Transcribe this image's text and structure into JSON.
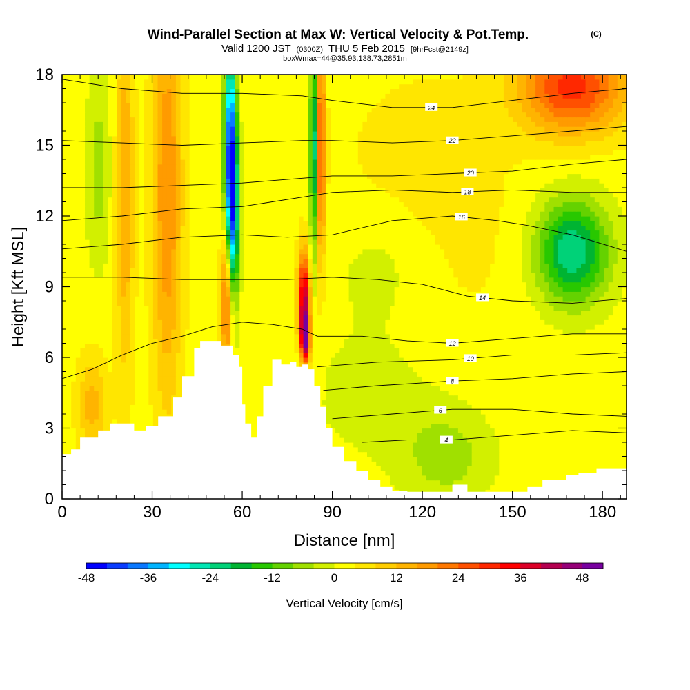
{
  "title": "Wind-Parallel Section at Max W: Vertical Velocity & Pot.Temp.",
  "title_mark": "(C)",
  "subtitle": {
    "valid_a": "Valid 1200 JST",
    "valid_small": "(0300Z)",
    "valid_b": "THU 5 Feb 2015",
    "fcst": "[9hrFcst@2149z]",
    "box": "boxWmax=44@35.93,138.73,2851m"
  },
  "chart_data": {
    "type": "heatmap",
    "xlabel": "Distance [nm]",
    "ylabel": "Height [Kft MSL]",
    "xlim": [
      0,
      188
    ],
    "ylim": [
      0,
      18
    ],
    "x_ticks": [
      0,
      30,
      60,
      90,
      120,
      150,
      180
    ],
    "y_ticks": [
      0,
      3,
      6,
      9,
      12,
      15,
      18
    ],
    "x_tick_labels": [
      "0",
      "30",
      "60",
      "90",
      "120",
      "150",
      "180"
    ],
    "y_tick_labels": [
      "0",
      "3",
      "6",
      "9",
      "12",
      "15",
      "18"
    ],
    "colorbar": {
      "label": "Vertical Velocity [cm/s]",
      "ticks": [
        "-48",
        "-36",
        "-24",
        "-12",
        "0",
        "12",
        "24",
        "36",
        "48"
      ],
      "tick_values": [
        -48,
        -36,
        -24,
        -12,
        0,
        12,
        24,
        36,
        48
      ],
      "range": [
        -48,
        52
      ],
      "step": 4,
      "colors": [
        "#0000ff",
        "#0a3cff",
        "#0a78ff",
        "#00b4ff",
        "#00ffff",
        "#00e6b4",
        "#00d278",
        "#00b432",
        "#28c800",
        "#64d200",
        "#a0e000",
        "#d2f000",
        "#ffff00",
        "#ffe600",
        "#ffcd00",
        "#ffb400",
        "#ff9b00",
        "#ff7800",
        "#ff5000",
        "#ff2800",
        "#ff0000",
        "#dc0028",
        "#b40050",
        "#960078",
        "#7800a0"
      ]
    },
    "vertical_velocity_features": [
      {
        "kind": "updraft",
        "x": 21,
        "y": 13,
        "w": 3,
        "h": 8,
        "v": 14
      },
      {
        "kind": "updraft",
        "x": 35,
        "y": 13,
        "w": 5,
        "h": 9,
        "v": 18
      },
      {
        "kind": "updraft",
        "x": 55,
        "y": 8.5,
        "w": 2,
        "h": 3,
        "v": 28
      },
      {
        "kind": "updraft",
        "x": 80.5,
        "y": 8.5,
        "w": 2,
        "h": 2,
        "v": 40
      },
      {
        "kind": "updraft",
        "x": 81,
        "y": 6.8,
        "w": 1.5,
        "h": 1,
        "v": 40
      },
      {
        "kind": "updraft",
        "x": 86,
        "y": 15,
        "w": 1.5,
        "h": 5,
        "v": 30
      },
      {
        "kind": "updraft",
        "x": 170,
        "y": 17.5,
        "w": 18,
        "h": 2,
        "v": 28
      },
      {
        "kind": "updraft",
        "x": 10,
        "y": 4,
        "w": 5,
        "h": 2,
        "v": 12
      },
      {
        "kind": "updraft",
        "x": 120,
        "y": 12,
        "w": 30,
        "h": 6,
        "v": 5
      },
      {
        "kind": "downdraft",
        "x": 56,
        "y": 15,
        "w": 2,
        "h": 5,
        "v": -38
      },
      {
        "kind": "downdraft",
        "x": 57,
        "y": 12,
        "w": 2,
        "h": 4,
        "v": -28
      },
      {
        "kind": "downdraft",
        "x": 84,
        "y": 15,
        "w": 1.5,
        "h": 4.5,
        "v": -30
      },
      {
        "kind": "downdraft",
        "x": 170,
        "y": 10.5,
        "w": 12,
        "h": 2.2,
        "v": -26
      },
      {
        "kind": "downdraft",
        "x": 108,
        "y": 10,
        "w": 20,
        "h": 3,
        "v": -6
      },
      {
        "kind": "downdraft",
        "x": 128,
        "y": 1.8,
        "w": 15,
        "h": 2,
        "v": -8
      },
      {
        "kind": "downdraft",
        "x": 12,
        "y": 14,
        "w": 4,
        "h": 4,
        "v": -8
      },
      {
        "kind": "downdraft",
        "x": 105,
        "y": 4.5,
        "w": 25,
        "h": 3,
        "v": -4
      }
    ],
    "terrain_kft": [
      [
        0,
        1.9
      ],
      [
        3,
        2.1
      ],
      [
        6,
        2.6
      ],
      [
        12,
        2.9
      ],
      [
        16,
        3.2
      ],
      [
        20,
        3.2
      ],
      [
        24,
        2.9
      ],
      [
        28,
        3.1
      ],
      [
        32,
        3.5
      ],
      [
        37,
        4.3
      ],
      [
        40,
        5.2
      ],
      [
        44,
        6.4
      ],
      [
        46,
        6.7
      ],
      [
        50,
        6.7
      ],
      [
        53,
        6.5
      ],
      [
        57,
        6.1
      ],
      [
        59,
        5.6
      ],
      [
        60,
        4.0
      ],
      [
        61,
        3.2
      ],
      [
        63,
        2.6
      ],
      [
        65,
        3.5
      ],
      [
        67,
        4.8
      ],
      [
        70,
        5.9
      ],
      [
        73,
        5.7
      ],
      [
        76,
        5.8
      ],
      [
        78,
        5.6
      ],
      [
        80,
        5.7
      ],
      [
        82,
        5.5
      ],
      [
        84,
        4.8
      ],
      [
        86,
        3.9
      ],
      [
        88,
        3.0
      ],
      [
        90,
        2.2
      ],
      [
        94,
        1.6
      ],
      [
        98,
        1.2
      ],
      [
        102,
        0.8
      ],
      [
        106,
        0.5
      ],
      [
        110,
        0.35
      ],
      [
        115,
        0.3
      ],
      [
        125,
        0.3
      ],
      [
        130,
        0.6
      ],
      [
        135,
        0.3
      ],
      [
        150,
        0.3
      ],
      [
        155,
        0.5
      ],
      [
        160,
        0.8
      ],
      [
        168,
        1.0
      ],
      [
        172,
        1.1
      ],
      [
        178,
        1.3
      ],
      [
        183,
        1.3
      ],
      [
        188,
        1.3
      ]
    ],
    "isentropes": [
      {
        "label": "4",
        "label_x": 128,
        "points": [
          [
            100,
            2.4
          ],
          [
            115,
            2.5
          ],
          [
            130,
            2.5
          ],
          [
            150,
            2.7
          ],
          [
            170,
            2.9
          ],
          [
            188,
            2.8
          ]
        ]
      },
      {
        "label": "6",
        "label_x": 126,
        "points": [
          [
            90,
            3.4
          ],
          [
            110,
            3.6
          ],
          [
            130,
            3.8
          ],
          [
            150,
            3.8
          ],
          [
            170,
            3.6
          ],
          [
            188,
            3.5
          ]
        ]
      },
      {
        "label": "8",
        "label_x": 130,
        "points": [
          [
            87,
            4.6
          ],
          [
            105,
            4.8
          ],
          [
            130,
            5.0
          ],
          [
            150,
            5.1
          ],
          [
            170,
            5.3
          ],
          [
            188,
            5.4
          ]
        ]
      },
      {
        "label": "10",
        "label_x": 136,
        "points": [
          [
            85,
            5.6
          ],
          [
            105,
            5.8
          ],
          [
            130,
            5.9
          ],
          [
            150,
            6.1
          ],
          [
            170,
            6.1
          ],
          [
            188,
            6.2
          ]
        ]
      },
      {
        "label": "12",
        "label_x": 130,
        "points": [
          [
            0,
            5.1
          ],
          [
            10,
            5.5
          ],
          [
            20,
            6.1
          ],
          [
            30,
            6.6
          ],
          [
            40,
            6.9
          ],
          [
            50,
            7.3
          ],
          [
            60,
            7.5
          ],
          [
            70,
            7.4
          ],
          [
            80,
            7.2
          ],
          [
            85,
            6.9
          ],
          [
            100,
            6.9
          ],
          [
            115,
            6.7
          ],
          [
            130,
            6.6
          ],
          [
            150,
            6.8
          ],
          [
            170,
            7.0
          ],
          [
            188,
            7.0
          ]
        ]
      },
      {
        "label": "14",
        "label_x": 140,
        "points": [
          [
            0,
            9.4
          ],
          [
            20,
            9.4
          ],
          [
            40,
            9.3
          ],
          [
            60,
            9.3
          ],
          [
            75,
            9.3
          ],
          [
            90,
            9.4
          ],
          [
            105,
            9.3
          ],
          [
            120,
            9.1
          ],
          [
            135,
            8.6
          ],
          [
            150,
            8.4
          ],
          [
            170,
            8.3
          ],
          [
            188,
            8.5
          ]
        ]
      },
      {
        "label": "16",
        "label_x": 133,
        "points": [
          [
            0,
            10.6
          ],
          [
            20,
            10.8
          ],
          [
            40,
            11.1
          ],
          [
            60,
            11.2
          ],
          [
            75,
            11.1
          ],
          [
            90,
            11.2
          ],
          [
            110,
            11.8
          ],
          [
            130,
            12.0
          ],
          [
            145,
            11.8
          ],
          [
            155,
            11.6
          ],
          [
            170,
            11.2
          ],
          [
            188,
            10.5
          ]
        ]
      },
      {
        "label": "18",
        "label_x": 135,
        "points": [
          [
            0,
            11.8
          ],
          [
            20,
            12.0
          ],
          [
            40,
            12.3
          ],
          [
            60,
            12.4
          ],
          [
            80,
            12.8
          ],
          [
            90,
            13.0
          ],
          [
            110,
            13.1
          ],
          [
            130,
            13.0
          ],
          [
            150,
            13.1
          ],
          [
            170,
            13.0
          ],
          [
            188,
            13.0
          ]
        ]
      },
      {
        "label": "20",
        "label_x": 136,
        "points": [
          [
            0,
            13.2
          ],
          [
            20,
            13.2
          ],
          [
            40,
            13.3
          ],
          [
            60,
            13.4
          ],
          [
            80,
            13.6
          ],
          [
            90,
            13.7
          ],
          [
            110,
            13.7
          ],
          [
            130,
            13.8
          ],
          [
            150,
            13.9
          ],
          [
            170,
            14.2
          ],
          [
            188,
            14.4
          ]
        ]
      },
      {
        "label": "22",
        "label_x": 130,
        "points": [
          [
            0,
            15.2
          ],
          [
            20,
            15.1
          ],
          [
            40,
            15.0
          ],
          [
            60,
            15.1
          ],
          [
            80,
            15.2
          ],
          [
            90,
            15.2
          ],
          [
            110,
            15.1
          ],
          [
            130,
            15.2
          ],
          [
            150,
            15.4
          ],
          [
            170,
            15.6
          ],
          [
            188,
            15.8
          ]
        ]
      },
      {
        "label": "24",
        "label_x": 123,
        "points": [
          [
            0,
            17.8
          ],
          [
            20,
            17.4
          ],
          [
            40,
            17.2
          ],
          [
            60,
            17.2
          ],
          [
            80,
            17.1
          ],
          [
            90,
            16.9
          ],
          [
            110,
            16.6
          ],
          [
            130,
            16.6
          ],
          [
            150,
            16.9
          ],
          [
            170,
            17.2
          ],
          [
            188,
            17.4
          ]
        ]
      }
    ]
  }
}
